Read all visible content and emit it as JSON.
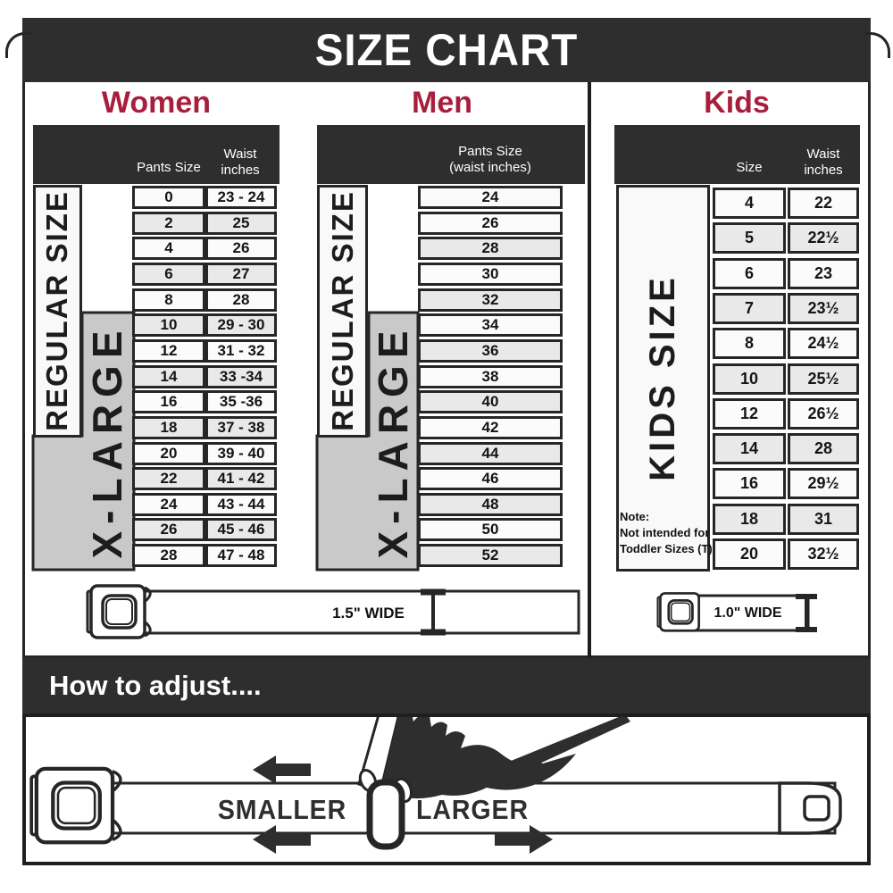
{
  "page_title": "SIZE CHART",
  "colors": {
    "accent": "#a81e3c",
    "dark": "#2f2e2e",
    "row_alt": "#e9e9e9",
    "xlarge_band": "#c9c9c9"
  },
  "sections": {
    "women": {
      "title": "Women",
      "col1_header": "Pants Size",
      "col2_header": [
        "Waist",
        "inches"
      ],
      "regular_label": "REGULAR SIZE",
      "xlarge_label": "X-LARGE",
      "rows": [
        [
          "0",
          "23 - 24"
        ],
        [
          "2",
          "25"
        ],
        [
          "4",
          "26"
        ],
        [
          "6",
          "27"
        ],
        [
          "8",
          "28"
        ],
        [
          "10",
          "29 - 30"
        ],
        [
          "12",
          "31 - 32"
        ],
        [
          "14",
          "33 -34"
        ],
        [
          "16",
          "35 -36"
        ],
        [
          "18",
          "37 - 38"
        ],
        [
          "20",
          "39 - 40"
        ],
        [
          "22",
          "41 - 42"
        ],
        [
          "24",
          "43 - 44"
        ],
        [
          "26",
          "45 - 46"
        ],
        [
          "28",
          "47 - 48"
        ]
      ]
    },
    "men": {
      "title": "Men",
      "col_header_lines": [
        "Pants Size",
        "(waist inches)"
      ],
      "regular_label": "REGULAR SIZE",
      "xlarge_label": "X-LARGE",
      "rows": [
        "24",
        "26",
        "28",
        "30",
        "32",
        "34",
        "36",
        "38",
        "40",
        "42",
        "44",
        "46",
        "48",
        "50",
        "52"
      ]
    },
    "kids": {
      "title": "Kids",
      "col1_header": "Size",
      "col2_header": [
        "Waist",
        "inches"
      ],
      "side_label": "KIDS SIZE",
      "note_lines": [
        "Note:",
        "Not intended for",
        "Toddler Sizes (T)"
      ],
      "rows": [
        [
          "4",
          "22"
        ],
        [
          "5",
          "22½"
        ],
        [
          "6",
          "23"
        ],
        [
          "7",
          "23½"
        ],
        [
          "8",
          "24½"
        ],
        [
          "10",
          "25½"
        ],
        [
          "12",
          "26½"
        ],
        [
          "14",
          "28"
        ],
        [
          "16",
          "29½"
        ],
        [
          "18",
          "31"
        ],
        [
          "20",
          "32½"
        ]
      ]
    }
  },
  "belts": {
    "adult_width_label": "1.5\" WIDE",
    "kids_width_label": "1.0\" WIDE"
  },
  "adjust": {
    "heading": "How to adjust....",
    "smaller_label": "SMALLER",
    "larger_label": "LARGER"
  }
}
